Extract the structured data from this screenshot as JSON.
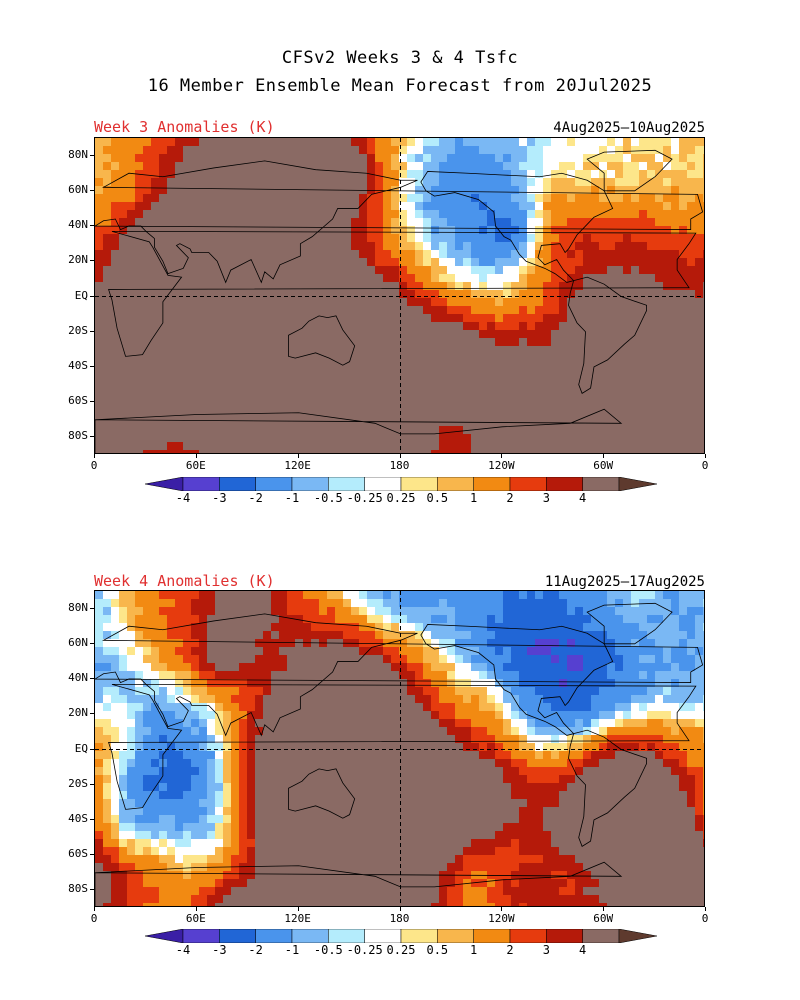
{
  "title_line1": "CFSv2 Weeks 3 & 4 Tsfc",
  "title_line2": "16 Member Ensemble Mean Forecast from 20Jul2025",
  "panels": [
    {
      "label": "Week 3 Anomalies (K)",
      "dates": "4Aug2025—10Aug2025"
    },
    {
      "label": "Week 4 Anomalies (K)",
      "dates": "11Aug2025—17Aug2025"
    }
  ],
  "lat_labels": [
    "80N",
    "60N",
    "40N",
    "20N",
    "EQ",
    "20S",
    "40S",
    "60S",
    "80S"
  ],
  "lon_labels": [
    "0",
    "60E",
    "120E",
    "180",
    "120W",
    "60W",
    "0"
  ],
  "colorbar": {
    "colors": [
      "#3a1fa6",
      "#5640d0",
      "#2166d6",
      "#4a94ec",
      "#7ab8f4",
      "#b4ecfc",
      "#ffffff",
      "#fde68a",
      "#f8b64c",
      "#f28a12",
      "#e63b0e",
      "#b51a0a",
      "#8a6a64",
      "#5e3a2e"
    ],
    "labels": [
      "-4",
      "-3",
      "-2",
      "-1",
      "-0.5",
      "-0.25",
      "0.25",
      "0.5",
      "1",
      "2",
      "3",
      "4"
    ]
  }
}
